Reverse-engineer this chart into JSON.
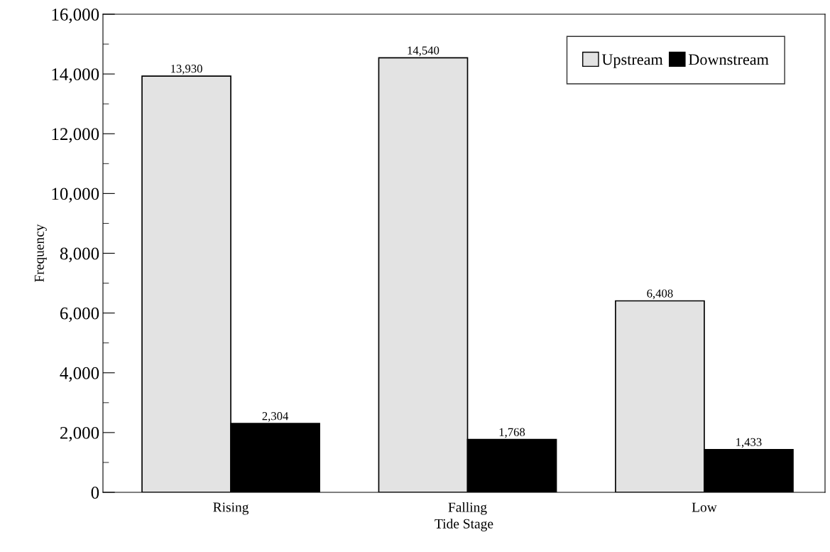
{
  "chart_data": {
    "type": "bar",
    "xlabel": "Tide Stage",
    "ylabel": "Frequency",
    "categories": [
      "Rising",
      "Falling",
      "Low"
    ],
    "series": [
      {
        "name": "Upstream",
        "color": "#e3e3e3",
        "values": [
          13930,
          14540,
          6408
        ],
        "value_labels": [
          "13,930",
          "14,540",
          "6,408"
        ]
      },
      {
        "name": "Downstream",
        "color": "#000000",
        "values": [
          2304,
          1768,
          1433
        ],
        "value_labels": [
          "2,304",
          "1,768",
          "1,433"
        ]
      }
    ],
    "ylim": [
      0,
      16000
    ],
    "yticks": [
      {
        "value": 0,
        "label": "0"
      },
      {
        "value": 2000,
        "label": "2,000"
      },
      {
        "value": 4000,
        "label": "4,000"
      },
      {
        "value": 6000,
        "label": "6,000"
      },
      {
        "value": 8000,
        "label": "8,000"
      },
      {
        "value": 10000,
        "label": "10,000"
      },
      {
        "value": 12000,
        "label": "12,000"
      },
      {
        "value": 14000,
        "label": "14,000"
      },
      {
        "value": 16000,
        "label": "16,000"
      }
    ],
    "grid": false,
    "legend": "top right"
  }
}
